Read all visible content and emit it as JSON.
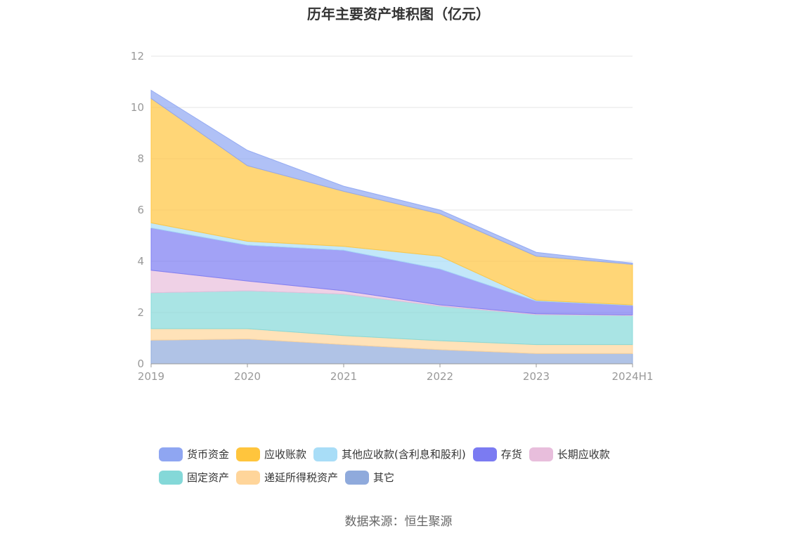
{
  "chart_data": {
    "type": "area",
    "stacked": true,
    "title": "历年主要资产堆积图（亿元）",
    "categories": [
      "2019",
      "2020",
      "2021",
      "2022",
      "2023",
      "2024H1"
    ],
    "ylim": [
      0,
      12
    ],
    "yticks": [
      "0",
      "2",
      "4",
      "6",
      "8",
      "10",
      "12"
    ],
    "grid": true,
    "legend_position": "bottom",
    "series": [
      {
        "name": "其它",
        "color": "#8FAADC",
        "values": [
          0.92,
          0.97,
          0.75,
          0.55,
          0.4,
          0.4
        ]
      },
      {
        "name": "递延所得税资产",
        "color": "#FFD59A",
        "values": [
          0.45,
          0.4,
          0.35,
          0.35,
          0.35,
          0.35
        ]
      },
      {
        "name": "固定资产",
        "color": "#84D8D8",
        "values": [
          1.4,
          1.48,
          1.62,
          1.35,
          1.17,
          1.13
        ]
      },
      {
        "name": "长期应收款",
        "color": "#E8BEDC",
        "values": [
          0.88,
          0.38,
          0.13,
          0.05,
          0.03,
          0.03
        ]
      },
      {
        "name": "存货",
        "color": "#7B7BF2",
        "values": [
          1.65,
          1.4,
          1.58,
          1.4,
          0.5,
          0.37
        ]
      },
      {
        "name": "其他应收款(含利息和股利)",
        "color": "#A8DDF7",
        "values": [
          0.2,
          0.15,
          0.15,
          0.5,
          0.03,
          0.02
        ]
      },
      {
        "name": "应收账款",
        "color": "#FFC53D",
        "values": [
          4.85,
          2.95,
          2.15,
          1.65,
          1.72,
          1.58
        ]
      },
      {
        "name": "货币资金",
        "color": "#8FA6F2",
        "values": [
          0.32,
          0.6,
          0.2,
          0.15,
          0.15,
          0.05
        ]
      }
    ]
  },
  "legend": [
    {
      "name": "货币资金",
      "color": "#8FA6F2"
    },
    {
      "name": "应收账款",
      "color": "#FFC53D"
    },
    {
      "name": "其他应收款(含利息和股利)",
      "color": "#A8DDF7"
    },
    {
      "name": "存货",
      "color": "#7B7BF2"
    },
    {
      "name": "长期应收款",
      "color": "#E8BEDC"
    },
    {
      "name": "固定资产",
      "color": "#84D8D8"
    },
    {
      "name": "递延所得税资产",
      "color": "#FFD59A"
    },
    {
      "name": "其它",
      "color": "#8FAADC"
    }
  ],
  "source": "数据来源：恒生聚源"
}
